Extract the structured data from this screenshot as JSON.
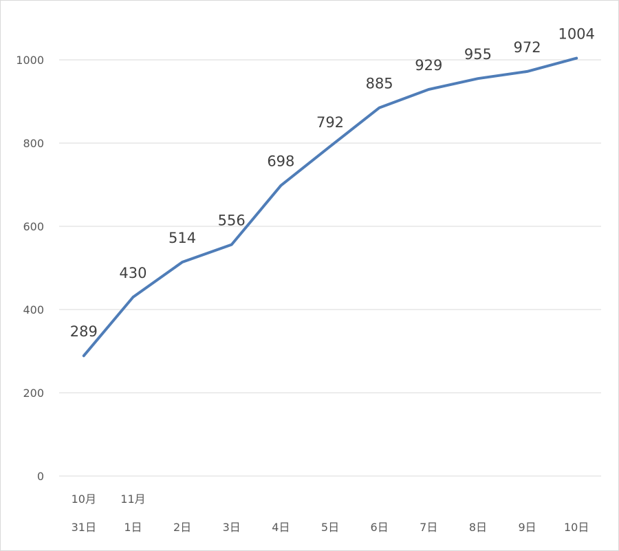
{
  "chart_data": {
    "type": "line",
    "title": "",
    "xlabel": "",
    "ylabel": "",
    "categories": [
      {
        "line1": "10月",
        "line2": "31日"
      },
      {
        "line1": "11月",
        "line2": "1日"
      },
      {
        "line1": "",
        "line2": "2日"
      },
      {
        "line1": "",
        "line2": "3日"
      },
      {
        "line1": "",
        "line2": "4日"
      },
      {
        "line1": "",
        "line2": "5日"
      },
      {
        "line1": "",
        "line2": "6日"
      },
      {
        "line1": "",
        "line2": "7日"
      },
      {
        "line1": "",
        "line2": "8日"
      },
      {
        "line1": "",
        "line2": "9日"
      },
      {
        "line1": "",
        "line2": "10日"
      }
    ],
    "series": [
      {
        "values": [
          289,
          430,
          514,
          556,
          698,
          792,
          885,
          929,
          955,
          972,
          1004
        ],
        "color": "#4f7db8"
      }
    ],
    "ylim": [
      0,
      1000
    ],
    "yticks": [
      "0",
      "200",
      "400",
      "600",
      "800",
      "1000"
    ],
    "grid": true,
    "legend": "none",
    "gridline_color": "#d9d9d9"
  }
}
